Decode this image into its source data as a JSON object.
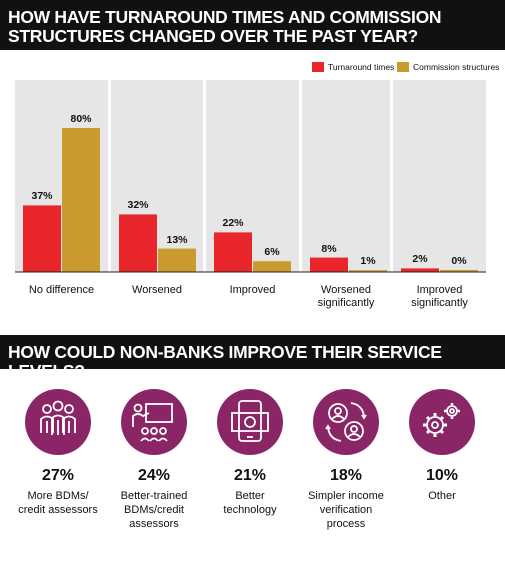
{
  "header1": {
    "line1": "HOW HAVE TURNAROUND TIMES AND COMMISSION",
    "line2": "STRUCTURES CHANGED OVER THE PAST YEAR?"
  },
  "header2": {
    "title": "HOW COULD NON-BANKS IMPROVE THEIR SERVICE LEVELS?"
  },
  "colors": {
    "turnaround": "#e8262b",
    "commission": "#c99a2e",
    "panel": "#e6e6e6",
    "icon_circle": "#8a2566"
  },
  "chart_data": {
    "type": "bar",
    "categories": [
      "No difference",
      "Worsened",
      "Improved",
      "Worsened significantly",
      "Improved significantly"
    ],
    "category_lines": [
      [
        "No difference"
      ],
      [
        "Worsened"
      ],
      [
        "Improved"
      ],
      [
        "Worsened",
        "significantly"
      ],
      [
        "Improved",
        "significantly"
      ]
    ],
    "series": [
      {
        "name": "Turnaround times",
        "values": [
          37,
          32,
          22,
          8,
          2
        ],
        "labels": [
          "37%",
          "32%",
          "22%",
          "8%",
          "2%"
        ]
      },
      {
        "name": "Commission structures",
        "values": [
          80,
          13,
          6,
          1,
          0
        ],
        "labels": [
          "80%",
          "13%",
          "6%",
          "1%",
          "0%"
        ]
      }
    ],
    "ylim": [
      0,
      100
    ],
    "legend": "top-right",
    "grid": false
  },
  "service": {
    "items": [
      {
        "pct": "27%",
        "line1": "More BDMs/",
        "line2": "credit assessors",
        "line3": "",
        "icon": "people-group-icon"
      },
      {
        "pct": "24%",
        "line1": "Better-trained",
        "line2": "BDMs/credit",
        "line3": "assessors",
        "icon": "presentation-training-icon"
      },
      {
        "pct": "21%",
        "line1": "Better",
        "line2": "technology",
        "line3": "",
        "icon": "smartphone-money-icon"
      },
      {
        "pct": "18%",
        "line1": "Simpler income",
        "line2": "verification",
        "line3": "process",
        "icon": "people-exchange-icon"
      },
      {
        "pct": "10%",
        "line1": "Other",
        "line2": "",
        "line3": "",
        "icon": "gears-icon"
      }
    ]
  }
}
